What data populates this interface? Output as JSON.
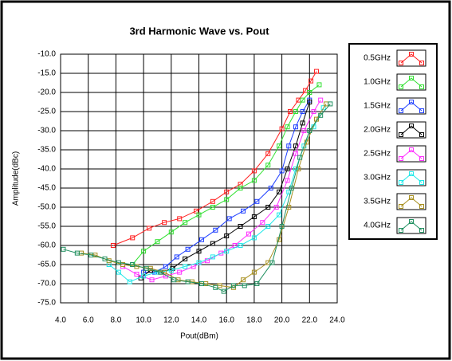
{
  "chart_data": {
    "type": "line",
    "title": "3rd Harmonic Wave vs. Pout",
    "x_label": "Pout(dBm)",
    "y_label": "Amplitude(dBc)",
    "xlim": [
      4,
      24
    ],
    "ylim": [
      -75,
      -10
    ],
    "grid": true,
    "legend": "right",
    "marker": "square",
    "xticks": [
      {
        "value": 4,
        "label": "4.0"
      },
      {
        "value": 6,
        "label": "6.0"
      },
      {
        "value": 8,
        "label": "8.0"
      },
      {
        "value": 10,
        "label": "10.0"
      },
      {
        "value": 12,
        "label": "12.0"
      },
      {
        "value": 14,
        "label": "14.0"
      },
      {
        "value": 16,
        "label": "16.0"
      },
      {
        "value": 18,
        "label": "18.0"
      },
      {
        "value": 20,
        "label": "20.0"
      },
      {
        "value": 22,
        "label": "22.0"
      },
      {
        "value": 24,
        "label": "24.0"
      }
    ],
    "yticks": [
      {
        "value": -10,
        "label": "-10.0"
      },
      {
        "value": -15,
        "label": "-15.0"
      },
      {
        "value": -20,
        "label": "-20.0"
      },
      {
        "value": -25,
        "label": "-25.0"
      },
      {
        "value": -30,
        "label": "-30.0"
      },
      {
        "value": -35,
        "label": "-35.0"
      },
      {
        "value": -40,
        "label": "-40.0"
      },
      {
        "value": -45,
        "label": "-45.0"
      },
      {
        "value": -50,
        "label": "-50.0"
      },
      {
        "value": -55,
        "label": "-55.0"
      },
      {
        "value": -60,
        "label": "-60.0"
      },
      {
        "value": -65,
        "label": "-65.0"
      },
      {
        "value": -70,
        "label": "-70.0"
      },
      {
        "value": -75,
        "label": "-75.0"
      }
    ],
    "series": [
      {
        "name": "0.5GHz",
        "color": "#ff2020",
        "x": [
          7.8,
          9.2,
          10.4,
          11.5,
          12.6,
          13.8,
          15,
          16,
          17,
          18,
          19,
          20,
          20.6,
          21.2,
          21.7,
          22.1,
          22.5
        ],
        "values": [
          -60,
          -58,
          -55.5,
          -54,
          -53,
          -51,
          -48.5,
          -46,
          -44,
          -40.5,
          -36,
          -29.5,
          -25,
          -22,
          -19.5,
          -17,
          -14.5
        ]
      },
      {
        "name": "1.0GHz",
        "color": "#30e030",
        "x": [
          9.2,
          10,
          11,
          12,
          13,
          14,
          15,
          16,
          17,
          18,
          19,
          19.8,
          20.4,
          21,
          21.5,
          22,
          22.7
        ],
        "values": [
          -65,
          -61.5,
          -59,
          -56.5,
          -54,
          -52,
          -50,
          -48,
          -45,
          -43,
          -39,
          -34,
          -29,
          -25,
          -22,
          -20,
          -18
        ]
      },
      {
        "name": "1.5GHz",
        "color": "#2040ff",
        "x": [
          10,
          10.8,
          11.6,
          12.4,
          13.2,
          14.2,
          15.2,
          16.2,
          17.2,
          18.2,
          19.2,
          20,
          20.5,
          21,
          21.5,
          22
        ],
        "values": [
          -67,
          -67,
          -65.5,
          -63,
          -61,
          -58.5,
          -56,
          -53,
          -51,
          -48.5,
          -45,
          -40.5,
          -34,
          -29,
          -25,
          -22
        ]
      },
      {
        "name": "2.0GHz",
        "color": "#000000",
        "x": [
          9.8,
          10.5,
          11.3,
          12.1,
          13,
          14,
          15,
          16,
          17,
          18,
          19,
          19.8,
          20.4,
          21,
          21.5,
          22
        ],
        "values": [
          -68.5,
          -66.5,
          -67,
          -66,
          -63.5,
          -61.5,
          -59.5,
          -57.5,
          -55,
          -52.5,
          -50,
          -46,
          -40,
          -34,
          -28,
          -22.5
        ]
      },
      {
        "name": "2.5GHz",
        "color": "#ff30ff",
        "x": [
          8.5,
          9.5,
          10.6,
          11.6,
          12.6,
          13.6,
          14.6,
          15.6,
          16.6,
          17.6,
          18.6,
          19.6,
          20.4,
          21,
          21.6,
          22.3,
          22.8
        ],
        "values": [
          -65.5,
          -67.5,
          -69,
          -68,
          -67,
          -65.5,
          -64,
          -62,
          -60,
          -57,
          -54,
          -50,
          -43,
          -36,
          -30,
          -25,
          -22
        ]
      },
      {
        "name": "3.0GHz",
        "color": "#20e8e8",
        "x": [
          7.5,
          8.2,
          9,
          10,
          11,
          12,
          13,
          14,
          15,
          16,
          17,
          18,
          19,
          19.8,
          20.5,
          21,
          21.6,
          22.3,
          23
        ],
        "values": [
          -65,
          -67,
          -69.5,
          -68,
          -67,
          -66.5,
          -65.5,
          -64.5,
          -63,
          -61.5,
          -60,
          -58,
          -55,
          -52,
          -46,
          -40,
          -34,
          -29,
          -24
        ]
      },
      {
        "name": "3.5GHz",
        "color": "#a89020",
        "x": [
          5.5,
          6.5,
          7.5,
          8.5,
          9.5,
          10.5,
          11.5,
          12.5,
          13.5,
          14.5,
          15.5,
          16.5,
          17.2,
          18,
          19,
          19.8,
          20.5,
          21.2,
          21.8,
          22.5,
          23.2
        ],
        "values": [
          -62,
          -62.5,
          -64,
          -65,
          -65.5,
          -66,
          -67,
          -69,
          -69.5,
          -70,
          -70.5,
          -71,
          -69,
          -67,
          -64.5,
          -58.5,
          -50,
          -40,
          -33,
          -27,
          -23
        ]
      },
      {
        "name": "4.0GHz",
        "color": "#209060",
        "x": [
          4.2,
          5.2,
          6.2,
          7.2,
          8.2,
          9.2,
          10.2,
          11.2,
          12.2,
          13.2,
          14.2,
          15.2,
          15.8,
          16.5,
          17.3,
          18.2,
          19.3,
          20,
          20.7,
          21.3,
          22,
          22.8,
          23.5
        ],
        "values": [
          -61,
          -62,
          -62.5,
          -63.5,
          -64.5,
          -65,
          -66,
          -67,
          -69,
          -69.5,
          -70,
          -71,
          -72,
          -70.5,
          -70.5,
          -70,
          -64.5,
          -55,
          -45,
          -37,
          -30,
          -26,
          -23
        ]
      }
    ]
  }
}
